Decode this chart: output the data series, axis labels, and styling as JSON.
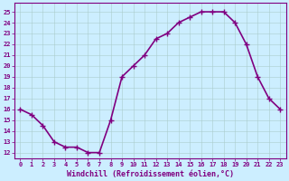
{
  "x": [
    0,
    1,
    2,
    3,
    4,
    5,
    6,
    7,
    8,
    9,
    10,
    11,
    12,
    13,
    14,
    15,
    16,
    17,
    18,
    19,
    20,
    21,
    22,
    23
  ],
  "y": [
    16,
    15.5,
    14.5,
    13,
    12.5,
    12.5,
    12,
    12,
    15,
    19,
    20,
    21,
    22.5,
    23,
    24,
    24.5,
    25,
    25,
    25,
    24,
    22,
    19,
    17,
    16
  ],
  "line_color": "#800080",
  "marker": "+",
  "marker_size": 4,
  "marker_edge_width": 1.0,
  "bg_color": "#cceeff",
  "grid_color": "#aacccc",
  "xlabel": "Windchill (Refroidissement éolien,°C)",
  "xlabel_color": "#800080",
  "ylabel_ticks": [
    12,
    13,
    14,
    15,
    16,
    17,
    18,
    19,
    20,
    21,
    22,
    23,
    24,
    25
  ],
  "xlim": [
    -0.5,
    23.5
  ],
  "ylim": [
    11.5,
    25.8
  ],
  "xtick_labels": [
    "0",
    "1",
    "2",
    "3",
    "4",
    "5",
    "6",
    "7",
    "8",
    "9",
    "10",
    "11",
    "12",
    "13",
    "14",
    "15",
    "16",
    "17",
    "18",
    "19",
    "20",
    "21",
    "22",
    "23"
  ],
  "tick_color": "#800080",
  "line_width": 1.2,
  "tick_fontsize": 5.0,
  "xlabel_fontsize": 6.0,
  "spine_color": "#800080"
}
